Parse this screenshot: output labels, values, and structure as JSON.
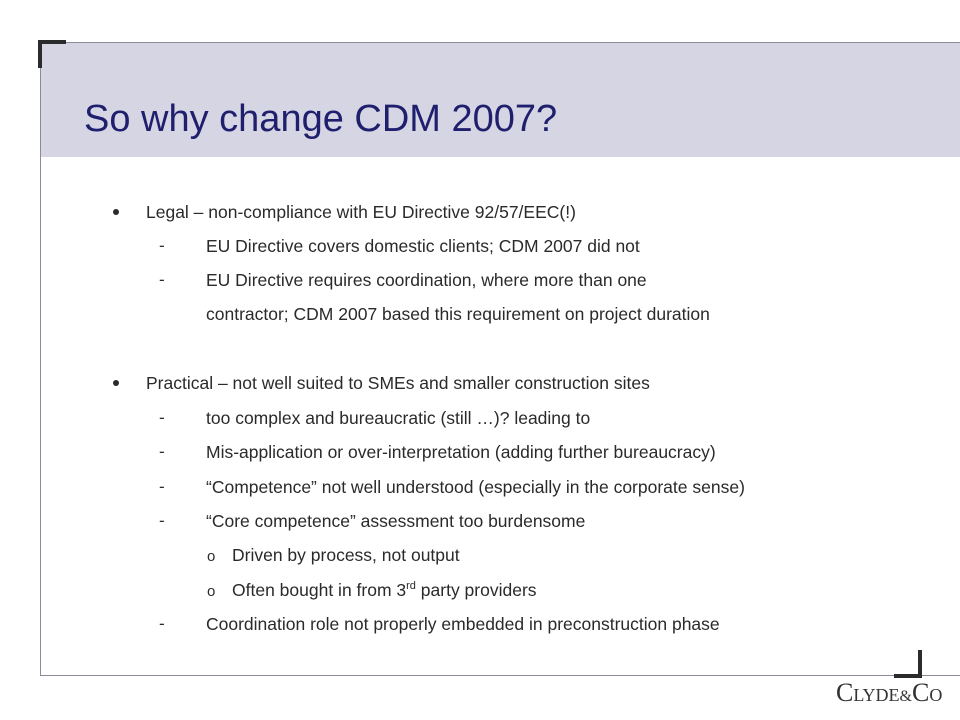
{
  "title": "So why change CDM 2007?",
  "bullets": [
    {
      "text": "Legal – non-compliance with EU Directive 92/57/EEC(!)",
      "sub": [
        {
          "marker": "-",
          "text": "EU Directive covers domestic clients; CDM 2007 did not"
        },
        {
          "marker": "-",
          "text": "EU Directive requires coordination, where more than one",
          "continuation": "contractor; CDM 2007 based this requirement on project duration"
        }
      ]
    },
    {
      "text": "Practical – not well suited to SMEs and smaller construction sites",
      "sub": [
        {
          "marker": "-",
          "text": "too complex and bureaucratic (still …)? leading to"
        },
        {
          "marker": "-",
          "text": "Mis-application or over-interpretation (adding further bureaucracy)"
        },
        {
          "marker": "-",
          "text": "“Competence” not well understood (especially in the corporate sense)"
        },
        {
          "marker": "-",
          "text": "“Core competence” assessment too burdensome"
        },
        {
          "marker": "o",
          "text": "Driven by process, not output"
        },
        {
          "marker": "o",
          "text_pre": "Often bought in from 3",
          "text_sup": "rd",
          "text_post": " party providers"
        },
        {
          "marker": "-",
          "text": "Coordination role not properly embedded in preconstruction phase"
        }
      ]
    }
  ],
  "logo": {
    "c1": "C",
    "lyde": "LYDE",
    "amp": "&",
    "c2": "C",
    "o": "O"
  },
  "icons": {
    "bullet": "filled-circle-bullet",
    "sub": "dash",
    "subsub": "open-circle-o"
  },
  "colors": {
    "title": "#1f1f6e",
    "band": "#d6d5e4",
    "corner": "#2b2b2b"
  }
}
